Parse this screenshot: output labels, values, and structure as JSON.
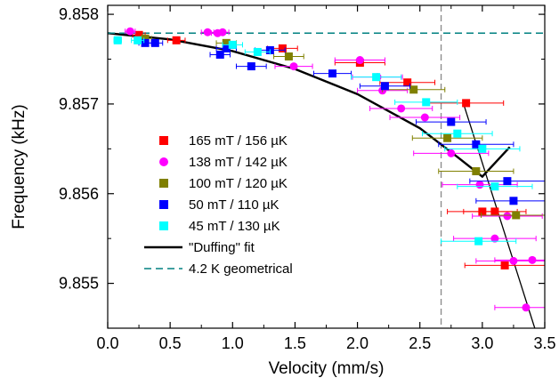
{
  "chart_data": {
    "type": "scatter",
    "title": "",
    "xlabel": "Velocity (mm/s)",
    "ylabel": "Frequency (kHz)",
    "xlim": [
      0.0,
      3.5
    ],
    "ylim": [
      9.8545,
      9.8581
    ],
    "xticks": [
      0.0,
      0.5,
      1.0,
      1.5,
      2.0,
      2.5,
      3.0,
      3.5
    ],
    "xtick_labels": [
      "0.0",
      "0.5",
      "1.0",
      "1.5",
      "2.0",
      "2.5",
      "3.0",
      "3.5"
    ],
    "yticks": [
      9.855,
      9.856,
      9.857,
      9.858
    ],
    "ytick_labels": [
      "9.855",
      "9.856",
      "9.857",
      "9.858"
    ],
    "grid": false,
    "legend_position": "center-left",
    "vertical_line": {
      "x": 2.67,
      "style": "dashed",
      "color": "#888888"
    },
    "series": [
      {
        "name": "165 mT / 156 µK",
        "marker": "square",
        "color": "#ff0000",
        "points": [
          {
            "x": 0.25,
            "y": 9.85777,
            "xerr": 0.05
          },
          {
            "x": 0.55,
            "y": 9.85771,
            "xerr": 0.07
          },
          {
            "x": 1.4,
            "y": 9.85762,
            "xerr": 0.12
          },
          {
            "x": 2.02,
            "y": 9.85746,
            "xerr": 0.2
          },
          {
            "x": 2.4,
            "y": 9.85724,
            "xerr": 0.22
          },
          {
            "x": 2.87,
            "y": 9.85701,
            "xerr": 0.3
          },
          {
            "x": 3.0,
            "y": 9.8558,
            "xerr": 0.28
          },
          {
            "x": 3.1,
            "y": 9.8558,
            "xerr": 0.25
          },
          {
            "x": 3.18,
            "y": 9.8552,
            "xerr": 0.32
          }
        ]
      },
      {
        "name": "138 mT / 142 µK",
        "marker": "circle",
        "color": "#ff00ff",
        "points": [
          {
            "x": 0.18,
            "y": 9.85781,
            "xerr": 0.04
          },
          {
            "x": 0.8,
            "y": 9.8578,
            "xerr": 0.05
          },
          {
            "x": 0.88,
            "y": 9.85779,
            "xerr": 0.05
          },
          {
            "x": 0.92,
            "y": 9.8578,
            "xerr": 0.05
          },
          {
            "x": 1.49,
            "y": 9.85742,
            "xerr": 0.15
          },
          {
            "x": 2.02,
            "y": 9.85749,
            "xerr": 0.2
          },
          {
            "x": 2.16,
            "y": 9.8573,
            "xerr": 0.2
          },
          {
            "x": 2.2,
            "y": 9.85715,
            "xerr": 0.2
          },
          {
            "x": 2.35,
            "y": 9.85695,
            "xerr": 0.25
          },
          {
            "x": 2.54,
            "y": 9.85685,
            "xerr": 0.28
          },
          {
            "x": 2.75,
            "y": 9.85645,
            "xerr": 0.3
          },
          {
            "x": 2.98,
            "y": 9.8561,
            "xerr": 0.3
          },
          {
            "x": 3.1,
            "y": 9.8555,
            "xerr": 0.33
          },
          {
            "x": 3.2,
            "y": 9.85575,
            "xerr": 0.28
          },
          {
            "x": 3.25,
            "y": 9.85525,
            "xerr": 0.3
          },
          {
            "x": 3.4,
            "y": 9.85526,
            "xerr": 0.3
          },
          {
            "x": 3.35,
            "y": 9.85473,
            "xerr": 0.25
          }
        ]
      },
      {
        "name": "100 mT / 120 µK",
        "marker": "square",
        "color": "#808000",
        "points": [
          {
            "x": 0.3,
            "y": 9.85773,
            "xerr": 0.05
          },
          {
            "x": 0.95,
            "y": 9.85768,
            "xerr": 0.08
          },
          {
            "x": 1.45,
            "y": 9.85753,
            "xerr": 0.12
          },
          {
            "x": 2.45,
            "y": 9.85716,
            "xerr": 0.25
          },
          {
            "x": 2.72,
            "y": 9.85662,
            "xerr": 0.28
          },
          {
            "x": 2.95,
            "y": 9.85625,
            "xerr": 0.3
          },
          {
            "x": 3.27,
            "y": 9.85576,
            "xerr": 0.28
          }
        ]
      },
      {
        "name": "50 mT / 110 µK",
        "marker": "square",
        "color": "#0000ff",
        "points": [
          {
            "x": 0.3,
            "y": 9.85768,
            "xerr": 0.05
          },
          {
            "x": 0.38,
            "y": 9.85768,
            "xerr": 0.06
          },
          {
            "x": 0.9,
            "y": 9.85755,
            "xerr": 0.08
          },
          {
            "x": 0.95,
            "y": 9.85762,
            "xerr": 0.08
          },
          {
            "x": 1.15,
            "y": 9.85742,
            "xerr": 0.12
          },
          {
            "x": 1.3,
            "y": 9.8576,
            "xerr": 0.12
          },
          {
            "x": 1.8,
            "y": 9.85734,
            "xerr": 0.15
          },
          {
            "x": 2.22,
            "y": 9.8572,
            "xerr": 0.2
          },
          {
            "x": 2.75,
            "y": 9.8568,
            "xerr": 0.28
          },
          {
            "x": 2.95,
            "y": 9.85655,
            "xerr": 0.3
          },
          {
            "x": 3.2,
            "y": 9.85614,
            "xerr": 0.3
          },
          {
            "x": 3.25,
            "y": 9.85592,
            "xerr": 0.3
          }
        ]
      },
      {
        "name": "  45 mT / 130 µK",
        "marker": "square",
        "color": "#00ffff",
        "points": [
          {
            "x": 0.08,
            "y": 9.85771,
            "xerr": 0.03
          },
          {
            "x": 0.24,
            "y": 9.85771,
            "xerr": 0.05
          },
          {
            "x": 1.0,
            "y": 9.85766,
            "xerr": 0.08
          },
          {
            "x": 1.2,
            "y": 9.85758,
            "xerr": 0.1
          },
          {
            "x": 2.15,
            "y": 9.8573,
            "xerr": 0.2
          },
          {
            "x": 2.55,
            "y": 9.85702,
            "xerr": 0.25
          },
          {
            "x": 2.8,
            "y": 9.85667,
            "xerr": 0.28
          },
          {
            "x": 3.0,
            "y": 9.8565,
            "xerr": 0.3
          },
          {
            "x": 3.1,
            "y": 9.85608,
            "xerr": 0.3
          },
          {
            "x": 2.97,
            "y": 9.85547,
            "xerr": 0.3
          }
        ]
      }
    ],
    "lines": [
      {
        "name": "\"Duffing\" fit",
        "style": "solid",
        "color": "#000000",
        "x": [
          0.0,
          0.5,
          1.0,
          1.5,
          2.0,
          2.5,
          2.8,
          3.0,
          3.22
        ],
        "y": [
          9.85779,
          9.85772,
          9.85759,
          9.85739,
          9.85711,
          9.85673,
          9.85641,
          9.85619,
          9.85652
        ]
      },
      {
        "name": "4.2 K geometrical",
        "style": "dashed",
        "color": "#008080",
        "x": [
          0.0,
          3.5
        ],
        "y": [
          9.85779,
          9.85779
        ]
      }
    ],
    "extra_line": {
      "color": "#000000",
      "x": [
        2.85,
        3.42
      ],
      "y": [
        9.857,
        9.8545
      ]
    }
  }
}
